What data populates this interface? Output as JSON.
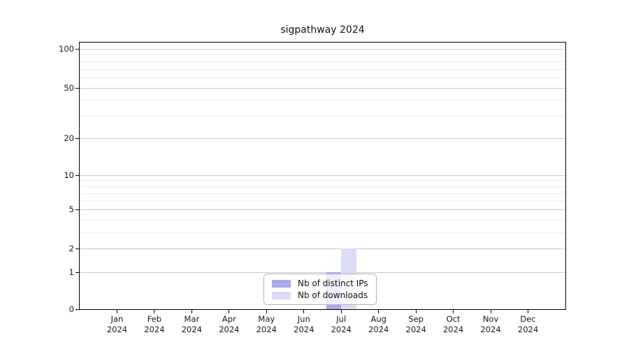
{
  "chart_data": {
    "type": "bar",
    "title": "sigpathway 2024",
    "categories": [
      "Jan",
      "Feb",
      "Mar",
      "Apr",
      "May",
      "Jun",
      "Jul",
      "Aug",
      "Sep",
      "Oct",
      "Nov",
      "Dec"
    ],
    "category_year": "2024",
    "series": [
      {
        "name": "Nb of distinct IPs",
        "color": "#a9a9ee",
        "values": [
          0,
          0,
          0,
          0,
          0,
          0,
          1,
          0,
          0,
          0,
          0,
          0
        ]
      },
      {
        "name": "Nb of downloads",
        "color": "#dcdcf7",
        "values": [
          0,
          0,
          0,
          0,
          0,
          0,
          2,
          0,
          0,
          0,
          0,
          0
        ]
      }
    ],
    "xlabel": "",
    "ylabel": "",
    "y_axis": {
      "scale": "log1p",
      "major_ticks": [
        0,
        1,
        2,
        5,
        10,
        20,
        50,
        100
      ],
      "minor_gridlines": [
        3,
        4,
        6,
        7,
        8,
        9,
        30,
        40,
        60,
        70,
        80,
        90
      ],
      "ylim": [
        0,
        112
      ]
    },
    "grid": true,
    "legend_position": "inside-bottom-center",
    "colors": {
      "axis": "#000000",
      "grid_major": "#c9c9c9",
      "grid_minor": "#ececec",
      "text": "#1a1a1a"
    }
  }
}
